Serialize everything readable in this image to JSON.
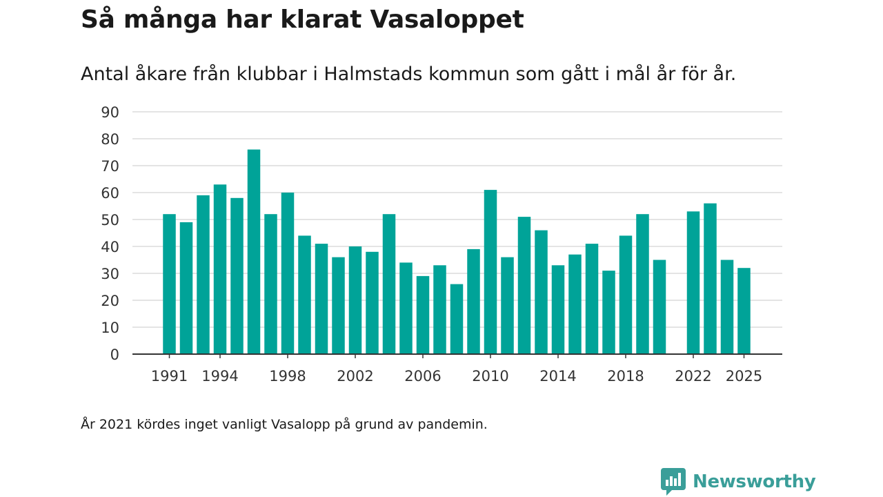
{
  "chart_data": {
    "type": "bar",
    "title": "Så många har klarat Vasaloppet",
    "subtitle": "Antal åkare från klubbar i Halmstads kommun som gått i mål år för år.",
    "xlabel": "",
    "ylabel": "",
    "ylim": [
      0,
      90
    ],
    "yticks": [
      0,
      10,
      20,
      30,
      40,
      50,
      60,
      70,
      80,
      90
    ],
    "xticks": [
      1991,
      1994,
      1998,
      2002,
      2006,
      2010,
      2014,
      2018,
      2022,
      2025
    ],
    "categories": [
      1991,
      1992,
      1993,
      1994,
      1995,
      1996,
      1997,
      1998,
      1999,
      2000,
      2001,
      2002,
      2003,
      2004,
      2005,
      2006,
      2007,
      2008,
      2009,
      2010,
      2011,
      2012,
      2013,
      2014,
      2015,
      2016,
      2017,
      2018,
      2019,
      2020,
      2021,
      2022,
      2023,
      2024,
      2025
    ],
    "values": [
      52,
      49,
      59,
      63,
      58,
      76,
      52,
      60,
      44,
      41,
      36,
      40,
      38,
      52,
      34,
      29,
      33,
      26,
      39,
      61,
      36,
      51,
      46,
      33,
      37,
      41,
      31,
      44,
      52,
      35,
      null,
      53,
      56,
      35,
      32
    ],
    "bar_color": "#00a398",
    "grid": true
  },
  "footnote": "År 2021 kördes inget vanligt Vasalopp på grund av pandemin.",
  "brand": {
    "name": "Newsworthy",
    "icon": "newsworthy-logo-icon",
    "color": "#3a9e99"
  }
}
